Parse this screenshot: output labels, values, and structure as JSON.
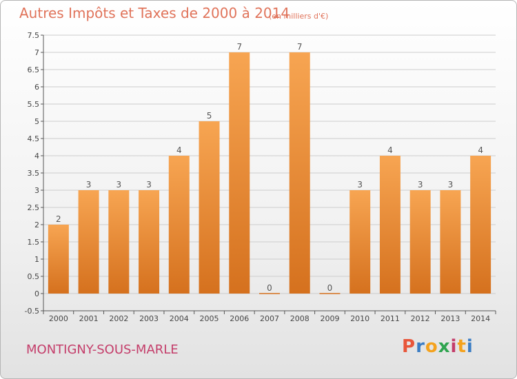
{
  "header": {
    "title": "Autres Impôts et Taxes de 2000 à 2014",
    "unit": "(en milliers d'€)"
  },
  "footer": {
    "place": "MONTIGNY-SOUS-MARLE",
    "logo": "Proxiti",
    "logo_colors": [
      "#e8563a",
      "#3b7dc4",
      "#f4a21d",
      "#2ea44f",
      "#c43d6a",
      "#f4a21d",
      "#3b7dc4"
    ]
  },
  "colors": {
    "bar_top": "#f7a552",
    "bar_bottom": "#d5711e",
    "grid": "#cccccc",
    "axis": "#555555"
  },
  "chart_data": {
    "type": "bar",
    "categories": [
      "2000",
      "2001",
      "2002",
      "2003",
      "2004",
      "2005",
      "2006",
      "2007",
      "2008",
      "2009",
      "2010",
      "2011",
      "2012",
      "2013",
      "2014"
    ],
    "values": [
      2,
      3,
      3,
      3,
      4,
      5,
      7,
      0,
      7,
      0,
      3,
      4,
      3,
      3,
      4
    ],
    "ylim": [
      -0.5,
      7.5
    ],
    "yticks": [
      "-0.5",
      "0",
      "0.5",
      "1",
      "1.5",
      "2",
      "2.5",
      "3",
      "3.5",
      "4",
      "4.5",
      "5",
      "5.5",
      "6",
      "6.5",
      "7",
      "7.5"
    ],
    "grid": true
  }
}
